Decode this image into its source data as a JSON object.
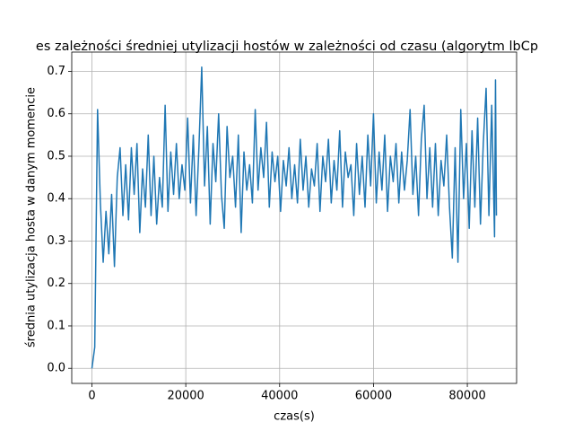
{
  "chart_data": {
    "type": "line",
    "title": "es zależności średniej utylizacji hostów w zależności od czasu (algorytm lbCp",
    "xlabel": "czas(s)",
    "ylabel": "średnia utylizacja hosta w danym momencie",
    "grid": true,
    "xlim": [
      -4300,
      90500
    ],
    "ylim": [
      -0.0355,
      0.7455
    ],
    "xticks": [
      0,
      20000,
      40000,
      60000,
      80000
    ],
    "yticks": [
      {
        "value": 0,
        "label": "0.0"
      },
      0.1,
      0.2,
      0.3,
      0.4,
      0.5,
      0.6,
      0.7
    ],
    "x": [
      0,
      600,
      1200,
      1800,
      2400,
      3000,
      3600,
      4200,
      4800,
      5400,
      6000,
      6600,
      7200,
      7800,
      8400,
      9000,
      9600,
      10200,
      10800,
      11400,
      12000,
      12600,
      13200,
      13800,
      14400,
      15000,
      15600,
      16200,
      16800,
      17400,
      18000,
      18600,
      19200,
      19800,
      20400,
      21000,
      21600,
      22200,
      22800,
      23400,
      24000,
      24600,
      25200,
      25800,
      26400,
      27000,
      27600,
      28200,
      28800,
      29400,
      30000,
      30600,
      31200,
      31800,
      32400,
      33000,
      33600,
      34200,
      34800,
      35400,
      36000,
      36600,
      37200,
      37800,
      38400,
      39000,
      39600,
      40200,
      40800,
      41400,
      42000,
      42600,
      43200,
      43800,
      44400,
      45000,
      45600,
      46200,
      46800,
      47400,
      48000,
      48600,
      49200,
      49800,
      50400,
      51000,
      51600,
      52200,
      52800,
      53400,
      54000,
      54600,
      55200,
      55800,
      56400,
      57000,
      57600,
      58200,
      58800,
      59400,
      60000,
      60600,
      61200,
      61800,
      62400,
      63000,
      63600,
      64200,
      64800,
      65400,
      66000,
      66600,
      67200,
      67800,
      68400,
      69000,
      69600,
      70200,
      70800,
      71400,
      72000,
      72600,
      73200,
      73800,
      74400,
      75000,
      75600,
      76200,
      76800,
      77400,
      78000,
      78600,
      79200,
      79800,
      80400,
      81000,
      81600,
      82200,
      82800,
      83400,
      84000,
      84600,
      85200,
      85800,
      86000,
      86200
    ],
    "series": [
      {
        "color": "#1f77b4",
        "values": [
          0,
          0.05,
          0.61,
          0.39,
          0.25,
          0.37,
          0.27,
          0.41,
          0.24,
          0.45,
          0.52,
          0.36,
          0.48,
          0.35,
          0.52,
          0.41,
          0.53,
          0.32,
          0.47,
          0.38,
          0.55,
          0.36,
          0.5,
          0.34,
          0.45,
          0.38,
          0.62,
          0.37,
          0.51,
          0.41,
          0.53,
          0.4,
          0.48,
          0.42,
          0.59,
          0.39,
          0.55,
          0.36,
          0.52,
          0.71,
          0.43,
          0.57,
          0.34,
          0.53,
          0.44,
          0.6,
          0.41,
          0.33,
          0.57,
          0.45,
          0.5,
          0.38,
          0.55,
          0.32,
          0.51,
          0.42,
          0.48,
          0.39,
          0.61,
          0.42,
          0.52,
          0.45,
          0.58,
          0.38,
          0.51,
          0.44,
          0.5,
          0.37,
          0.49,
          0.43,
          0.52,
          0.4,
          0.48,
          0.39,
          0.54,
          0.42,
          0.5,
          0.38,
          0.47,
          0.43,
          0.53,
          0.37,
          0.5,
          0.44,
          0.54,
          0.39,
          0.49,
          0.42,
          0.56,
          0.38,
          0.51,
          0.45,
          0.48,
          0.36,
          0.53,
          0.41,
          0.5,
          0.38,
          0.55,
          0.43,
          0.6,
          0.39,
          0.51,
          0.42,
          0.55,
          0.37,
          0.5,
          0.44,
          0.53,
          0.39,
          0.51,
          0.42,
          0.49,
          0.61,
          0.41,
          0.5,
          0.36,
          0.54,
          0.62,
          0.4,
          0.52,
          0.38,
          0.53,
          0.36,
          0.49,
          0.43,
          0.55,
          0.38,
          0.26,
          0.52,
          0.25,
          0.61,
          0.4,
          0.53,
          0.33,
          0.56,
          0.38,
          0.59,
          0.34,
          0.53,
          0.66,
          0.36,
          0.62,
          0.31,
          0.68,
          0.36
        ]
      }
    ]
  }
}
